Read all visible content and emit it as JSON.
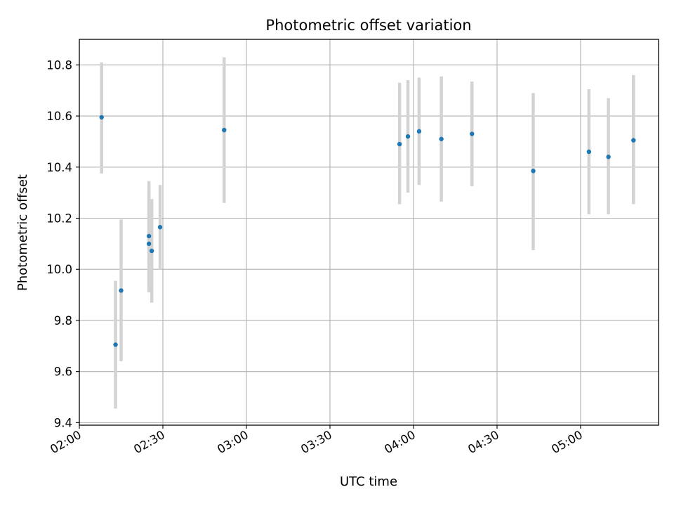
{
  "chart_data": {
    "type": "scatter",
    "title": "Photometric offset variation",
    "xlabel": "UTC time",
    "ylabel": "Photometric offset",
    "x_unit": "time (HH:MM, UTC)",
    "xlim": [
      "02:00",
      "05:28"
    ],
    "ylim": [
      9.39,
      10.9
    ],
    "xticks": [
      "02:00",
      "02:30",
      "03:00",
      "03:30",
      "04:00",
      "04:30",
      "05:00"
    ],
    "yticks": [
      9.4,
      9.6,
      9.8,
      10.0,
      10.2,
      10.4,
      10.6,
      10.8
    ],
    "grid": true,
    "colors": {
      "marker": "#1f77b4",
      "errorbar": "#d3d3d3",
      "grid": "#b0b0b0"
    },
    "points": [
      {
        "x": "02:08",
        "y": 10.595,
        "ylow": 10.375,
        "yhigh": 10.81
      },
      {
        "x": "02:13",
        "y": 9.705,
        "ylow": 9.455,
        "yhigh": 9.955
      },
      {
        "x": "02:15",
        "y": 9.917,
        "ylow": 9.64,
        "yhigh": 10.195
      },
      {
        "x": "02:25",
        "y": 10.13,
        "ylow": 9.91,
        "yhigh": 10.345
      },
      {
        "x": "02:25",
        "y": 10.1,
        "ylow": 9.93,
        "yhigh": 10.3
      },
      {
        "x": "02:26",
        "y": 10.072,
        "ylow": 9.87,
        "yhigh": 10.275
      },
      {
        "x": "02:29",
        "y": 10.165,
        "ylow": 10.0,
        "yhigh": 10.33
      },
      {
        "x": "02:52",
        "y": 10.545,
        "ylow": 10.26,
        "yhigh": 10.83
      },
      {
        "x": "03:55",
        "y": 10.49,
        "ylow": 10.255,
        "yhigh": 10.73
      },
      {
        "x": "03:58",
        "y": 10.52,
        "ylow": 10.3,
        "yhigh": 10.74
      },
      {
        "x": "04:02",
        "y": 10.54,
        "ylow": 10.33,
        "yhigh": 10.75
      },
      {
        "x": "04:10",
        "y": 10.51,
        "ylow": 10.265,
        "yhigh": 10.755
      },
      {
        "x": "04:21",
        "y": 10.53,
        "ylow": 10.325,
        "yhigh": 10.735
      },
      {
        "x": "04:43",
        "y": 10.385,
        "ylow": 10.075,
        "yhigh": 10.69
      },
      {
        "x": "05:03",
        "y": 10.46,
        "ylow": 10.215,
        "yhigh": 10.705
      },
      {
        "x": "05:10",
        "y": 10.44,
        "ylow": 10.215,
        "yhigh": 10.67
      },
      {
        "x": "05:19",
        "y": 10.505,
        "ylow": 10.255,
        "yhigh": 10.76
      }
    ]
  }
}
